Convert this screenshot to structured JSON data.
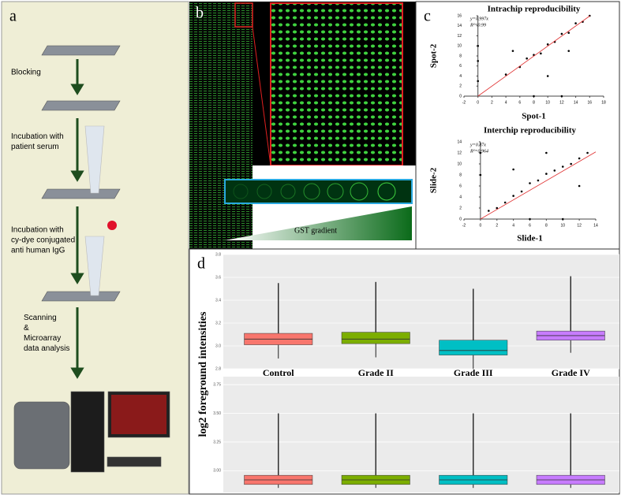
{
  "panel_labels": [
    "a",
    "b",
    "c",
    "d"
  ],
  "steps": [
    {
      "lines": [
        "Blocking"
      ]
    },
    {
      "lines": [
        "Incubation with",
        "patient serum"
      ]
    },
    {
      "lines": [
        "Incubation with",
        "cy-dye conjugated",
        "anti human IgG"
      ]
    },
    {
      "lines": [
        "Scanning",
        "&",
        "Microarray",
        "data analysis"
      ]
    }
  ],
  "gradient_label": "GST gradient",
  "y_label": "log2 foreground intensities",
  "chart_data": [
    {
      "type": "scatter",
      "title": "Intrachip reproducibility",
      "x_label": "Spot-1",
      "y_label": "Spot-2",
      "fit": {
        "value": 0.997,
        "label": "y=0.997x"
      },
      "r2_label": "R²=0.99",
      "x": [
        4,
        6,
        7,
        8,
        9,
        10,
        11,
        12,
        13,
        14,
        15,
        0,
        0,
        0,
        8,
        12,
        5,
        10,
        13,
        16
      ],
      "values": [
        4.3,
        5.8,
        7.5,
        8.2,
        8.5,
        10.3,
        10.8,
        12.4,
        12.6,
        14.5,
        14.8,
        7,
        3,
        10,
        0,
        0,
        9,
        4,
        9,
        16
      ],
      "color": "#000000",
      "fit_color": "#e03030",
      "xlim": [
        -2,
        18
      ],
      "xticks": [
        -2,
        0,
        2,
        4,
        6,
        8,
        10,
        12,
        14,
        16,
        18
      ],
      "ylim": [
        0,
        16
      ],
      "yticks": [
        0,
        2,
        4,
        6,
        8,
        10,
        12,
        14,
        16
      ]
    },
    {
      "type": "scatter",
      "title": "Interchip reproducibility",
      "x_label": "Slide-1",
      "y_label": "Slide-2",
      "fit": {
        "value": 0.87,
        "label": "y=0.87x"
      },
      "r2_label": "R²=0.964",
      "x": [
        1,
        2,
        3,
        4,
        5,
        6,
        7,
        8,
        9,
        10,
        11,
        12,
        13,
        0,
        0,
        6,
        10,
        4,
        8,
        12
      ],
      "values": [
        1.5,
        2,
        3,
        4.2,
        5,
        6.5,
        7,
        8.2,
        8.8,
        9.5,
        10,
        11,
        12,
        8,
        12,
        0,
        0,
        9,
        12,
        6
      ],
      "color": "#000000",
      "fit_color": "#e03030",
      "xlim": [
        -2,
        14
      ],
      "xticks": [
        -2,
        0,
        2,
        4,
        6,
        8,
        10,
        12,
        14
      ],
      "ylim": [
        0,
        14
      ],
      "yticks": [
        0,
        2,
        4,
        6,
        8,
        10,
        12,
        14
      ]
    },
    {
      "type": "box",
      "categories": [
        "Control",
        "Grade II",
        "Grade III",
        "Grade IV"
      ],
      "colors": [
        "#f8766d",
        "#7cae00",
        "#00bfc4",
        "#c77cff"
      ],
      "boxes": [
        {
          "whisker_low": 2.89,
          "q1": 3.01,
          "median": 3.06,
          "q3": 3.11,
          "whisker_high": 3.55
        },
        {
          "whisker_low": 2.9,
          "q1": 3.02,
          "median": 3.06,
          "q3": 3.12,
          "whisker_high": 3.56
        },
        {
          "whisker_low": 2.8,
          "q1": 2.92,
          "median": 2.96,
          "q3": 3.05,
          "whisker_high": 3.5
        },
        {
          "whisker_low": 2.94,
          "q1": 3.05,
          "median": 3.09,
          "q3": 3.13,
          "whisker_high": 3.61
        }
      ],
      "ylim": [
        2.8,
        3.8
      ],
      "yticks": [
        2.8,
        {
          "value": 3,
          "label": "3.0"
        },
        3.2,
        3.4,
        3.6,
        3.8
      ],
      "grid": true
    },
    {
      "type": "box",
      "colors": [
        "#f8766d",
        "#7cae00",
        "#00bfc4",
        "#c77cff"
      ],
      "boxes": [
        {
          "whisker_low": 2.85,
          "q1": 2.88,
          "median": 2.92,
          "q3": 2.96,
          "whisker_high": 3.5
        },
        {
          "whisker_low": 2.85,
          "q1": 2.88,
          "median": 2.92,
          "q3": 2.96,
          "whisker_high": 3.5
        },
        {
          "whisker_low": 2.85,
          "q1": 2.88,
          "median": 2.92,
          "q3": 2.96,
          "whisker_high": 3.5
        },
        {
          "whisker_low": 2.85,
          "q1": 2.88,
          "median": 2.92,
          "q3": 2.96,
          "whisker_high": 3.5
        }
      ],
      "ylim": [
        2.81,
        3.82
      ],
      "yticks": [
        {
          "value": 3,
          "label": "3.00"
        },
        3.25,
        {
          "value": 3.5,
          "label": "3.50"
        },
        3.75
      ],
      "grid": true
    }
  ]
}
